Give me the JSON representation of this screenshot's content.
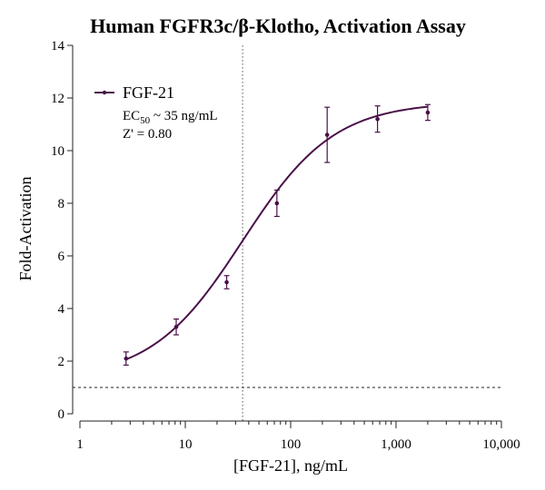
{
  "chart_data": {
    "type": "line",
    "title": "Human FGFR3c/β-Klotho, Activation Assay",
    "xlabel": "[FGF-21], ng/mL",
    "ylabel": "Fold-Activation",
    "x_scale": "log",
    "xlim": [
      1,
      10000
    ],
    "ylim": [
      0,
      14
    ],
    "x_ticks": [
      1,
      10,
      100,
      1000,
      10000
    ],
    "x_tick_labels": [
      "1",
      "10",
      "100",
      "1,000",
      "10,000"
    ],
    "y_ticks": [
      0,
      2,
      4,
      6,
      8,
      10,
      12,
      14
    ],
    "y_tick_labels": [
      "0",
      "2",
      "4",
      "6",
      "8",
      "10",
      "12",
      "14"
    ],
    "grid": false,
    "legend_position": "top-left",
    "series": [
      {
        "name": "FGF-21",
        "color": "#4a1048",
        "points": [
          {
            "x": 2.74,
            "y": 2.1,
            "err": 0.25
          },
          {
            "x": 8.2,
            "y": 3.3,
            "err": 0.3
          },
          {
            "x": 24.7,
            "y": 5.0,
            "err": 0.25
          },
          {
            "x": 74,
            "y": 8.0,
            "err": 0.5
          },
          {
            "x": 222,
            "y": 10.6,
            "err": 1.05
          },
          {
            "x": 667,
            "y": 11.2,
            "err": 0.5
          },
          {
            "x": 2000,
            "y": 11.45,
            "err": 0.3
          }
        ],
        "fit": {
          "bottom": 1.3,
          "top": 11.85,
          "ec50": 35,
          "hill": 1.0
        }
      }
    ],
    "annotations": {
      "ec50_prefix": "EC",
      "ec50_sub": "50",
      "ec50_suffix": " ~ 35 ng/mL",
      "zprime": "Z' = 0.80"
    },
    "reference_lines": {
      "ec50_x": 35,
      "baseline_y": 1
    }
  }
}
